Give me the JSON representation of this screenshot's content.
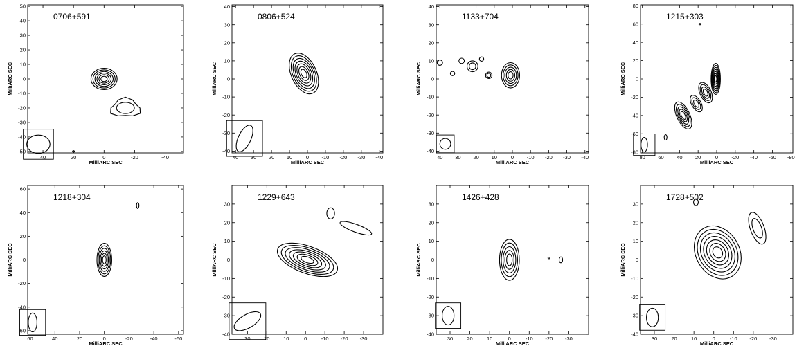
{
  "figure": {
    "panels": [
      {
        "id": "p1",
        "source": "0706+591",
        "xlabel": "MilliARC SEC",
        "ylabel": "MilliARC SEC",
        "xlim": [
          50,
          -52
        ],
        "ylim": [
          -51,
          51
        ],
        "xticks": [
          40,
          20,
          0,
          -20,
          -40
        ],
        "yticks": [
          50,
          40,
          30,
          20,
          10,
          0,
          -10,
          -20,
          -30,
          -40,
          -50
        ],
        "beam": {
          "x": 43,
          "y": -45,
          "major": 8,
          "minor": 6,
          "pa": 90
        },
        "components": [
          {
            "x": 0,
            "y": 0,
            "r": 9,
            "rmin": 7,
            "pa": 90,
            "levels": 6
          },
          {
            "x": -14,
            "y": -20,
            "r": 10,
            "rmin": 6,
            "pa": 90,
            "levels": 2,
            "irregular": true
          }
        ],
        "specks": [
          {
            "x": 20,
            "y": -50
          }
        ]
      },
      {
        "id": "p2",
        "source": "0806+524",
        "xlabel": "MilliARC SEC",
        "ylabel": "MilliARC SEC",
        "xlim": [
          42,
          -42
        ],
        "ylim": [
          -41,
          41
        ],
        "xticks": [
          40,
          30,
          20,
          10,
          0,
          -10,
          -20,
          -30,
          -40
        ],
        "yticks": [
          40,
          30,
          20,
          10,
          0,
          -10,
          -20,
          -30,
          -40
        ],
        "beam": {
          "x": 35,
          "y": -33,
          "major": 8,
          "minor": 3.5,
          "pa": 25
        },
        "components": [
          {
            "x": 2,
            "y": 3,
            "r": 12,
            "rmin": 7,
            "pa": -25,
            "levels": 7
          }
        ],
        "specks": []
      },
      {
        "id": "p3",
        "source": "1133+704",
        "xlabel": "MilliARC SEC",
        "ylabel": "MilliARC SEC",
        "xlim": [
          42,
          -42
        ],
        "ylim": [
          -41,
          41
        ],
        "xticks": [
          40,
          30,
          20,
          10,
          0,
          -10,
          -20,
          -30,
          -40
        ],
        "yticks": [
          40,
          30,
          20,
          10,
          0,
          -10,
          -20,
          -30,
          -40
        ],
        "beam": {
          "x": 37,
          "y": -36,
          "major": 3,
          "minor": 3,
          "pa": 0
        },
        "components": [
          {
            "x": 1,
            "y": 2,
            "r": 7,
            "rmin": 5,
            "pa": 0,
            "levels": 5
          },
          {
            "x": 22,
            "y": 7,
            "r": 3,
            "rmin": 3,
            "pa": 0,
            "levels": 2
          },
          {
            "x": 28,
            "y": 10,
            "r": 1.5,
            "rmin": 1.5,
            "pa": 0,
            "levels": 1
          },
          {
            "x": 33,
            "y": 3,
            "r": 1.2,
            "rmin": 1.2,
            "pa": 0,
            "levels": 1
          },
          {
            "x": 40,
            "y": 9,
            "r": 1.5,
            "rmin": 1.5,
            "pa": 0,
            "levels": 1
          },
          {
            "x": 13,
            "y": 2,
            "r": 1.8,
            "rmin": 1.8,
            "pa": 0,
            "levels": 2
          },
          {
            "x": 17,
            "y": 11,
            "r": 1.2,
            "rmin": 1.2,
            "pa": 0,
            "levels": 1
          }
        ],
        "specks": []
      },
      {
        "id": "p4",
        "source": "1215+303",
        "xlabel": "MilliARC SEC",
        "ylabel": "MilliARC SEC",
        "xlim": [
          82,
          -82
        ],
        "ylim": [
          -81,
          81
        ],
        "xticks": [
          80,
          60,
          40,
          20,
          0,
          -20,
          -40,
          -60,
          -80
        ],
        "yticks": [
          80,
          60,
          40,
          20,
          0,
          -20,
          -40,
          -60,
          -80
        ],
        "beam": {
          "x": 78,
          "y": -72,
          "major": 8,
          "minor": 3.5,
          "pa": 0
        },
        "components": [
          {
            "x": 1,
            "y": 0,
            "r": 17,
            "rmin": 5,
            "pa": 0,
            "levels": 7
          },
          {
            "x": 12,
            "y": -15,
            "r": 12,
            "rmin": 6,
            "pa": -25,
            "levels": 4
          },
          {
            "x": 22,
            "y": -27,
            "r": 10,
            "rmin": 5,
            "pa": -30,
            "levels": 3
          },
          {
            "x": 36,
            "y": -40,
            "r": 16,
            "rmin": 7,
            "pa": -25,
            "levels": 5
          },
          {
            "x": 55,
            "y": -64,
            "r": 3,
            "rmin": 1.5,
            "pa": 0,
            "levels": 1
          }
        ],
        "specks": [
          {
            "x": 18,
            "y": 60
          }
        ]
      },
      {
        "id": "p5",
        "source": "1218+304",
        "xlabel": "MilliARC SEC",
        "ylabel": "MilliARC SEC",
        "xlim": [
          62,
          -64
        ],
        "ylim": [
          -63,
          63
        ],
        "xticks": [
          60,
          40,
          20,
          0,
          -20,
          -40,
          -60
        ],
        "yticks": [
          60,
          40,
          20,
          0,
          -20,
          -40,
          -60
        ],
        "beam": {
          "x": 58,
          "y": -53,
          "major": 8,
          "minor": 3.5,
          "pa": 0
        },
        "components": [
          {
            "x": 0,
            "y": 0,
            "r": 14,
            "rmin": 6,
            "pa": 0,
            "levels": 6
          },
          {
            "x": -27,
            "y": 46,
            "r": 2.5,
            "rmin": 1,
            "pa": 0,
            "levels": 1
          }
        ],
        "specks": []
      },
      {
        "id": "p6",
        "source": "1229+643",
        "xlabel": "",
        "ylabel": "MilliARC SEC",
        "xlim": [
          38,
          -40
        ],
        "ylim": [
          -40,
          40
        ],
        "xticks": [
          30,
          20,
          10,
          0,
          -10,
          -20,
          -30
        ],
        "yticks": [
          30,
          20,
          10,
          0,
          -10,
          -20,
          -30,
          -40
        ],
        "beam": {
          "x": 30,
          "y": -33,
          "major": 8,
          "minor": 3.5,
          "pa": 60
        },
        "components": [
          {
            "x": -1,
            "y": 0,
            "r": 17,
            "rmin": 7,
            "pa": -70,
            "levels": 7
          },
          {
            "x": -13,
            "y": 25,
            "r": 3,
            "rmin": 2,
            "pa": 0,
            "levels": 1
          },
          {
            "x": -26,
            "y": 17,
            "r": 9,
            "rmin": 2,
            "pa": -70,
            "levels": 1
          }
        ],
        "specks": []
      },
      {
        "id": "p7",
        "source": "1426+428",
        "xlabel": "MilliARC SEC",
        "ylabel": "MilliARC SEC",
        "xlim": [
          37,
          -40
        ],
        "ylim": [
          -40,
          40
        ],
        "xticks": [
          30,
          20,
          10,
          0,
          -10,
          -20,
          -30
        ],
        "yticks": [
          30,
          20,
          10,
          0,
          -10,
          -20,
          -30,
          -40
        ],
        "beam": {
          "x": 31,
          "y": -30,
          "major": 5,
          "minor": 3,
          "pa": 0
        },
        "components": [
          {
            "x": 0,
            "y": 0,
            "r": 11,
            "rmin": 5,
            "pa": 0,
            "levels": 5
          },
          {
            "x": -26,
            "y": 0,
            "r": 1.6,
            "rmin": 0.9,
            "pa": 0,
            "levels": 1
          }
        ],
        "specks": [
          {
            "x": -20,
            "y": 1
          }
        ]
      },
      {
        "id": "p8",
        "source": "1728+502",
        "xlabel": "MilliARC SEC",
        "ylabel": "MilliARC SEC",
        "xlim": [
          37,
          -40
        ],
        "ylim": [
          -40,
          40
        ],
        "xticks": [
          30,
          20,
          10,
          0,
          -10,
          -20,
          -30
        ],
        "yticks": [
          30,
          20,
          10,
          0,
          -10,
          -20,
          -30,
          -40
        ],
        "beam": {
          "x": 31,
          "y": -31,
          "major": 5,
          "minor": 3,
          "pa": 0
        },
        "components": [
          {
            "x": -2,
            "y": 4,
            "r": 15,
            "rmin": 11,
            "pa": -30,
            "levels": 7
          },
          {
            "x": -22,
            "y": 17,
            "r": 9,
            "rmin": 3.5,
            "pa": -20,
            "levels": 2
          },
          {
            "x": 9,
            "y": 31,
            "r": 1.8,
            "rmin": 1.2,
            "pa": 0,
            "levels": 1
          }
        ],
        "specks": []
      }
    ]
  }
}
